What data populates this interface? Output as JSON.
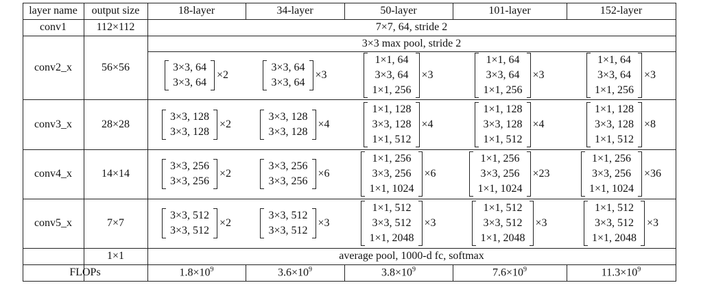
{
  "table": {
    "header": [
      "layer name",
      "output size",
      "18-layer",
      "34-layer",
      "50-layer",
      "101-layer",
      "152-layer"
    ],
    "rows": [
      {
        "layer": "conv1",
        "output": "112×112",
        "spec": "7×7, 64, stride 2"
      },
      {
        "layer": "conv2_x",
        "output": "56×56",
        "pre": "3×3 max pool, stride 2",
        "blocks": [
          {
            "lines": [
              "3×3, 64",
              "3×3, 64"
            ],
            "repeat": "×2"
          },
          {
            "lines": [
              "3×3, 64",
              "3×3, 64"
            ],
            "repeat": "×3"
          },
          {
            "lines": [
              "1×1, 64",
              "3×3, 64",
              "1×1, 256"
            ],
            "repeat": "×3"
          },
          {
            "lines": [
              "1×1, 64",
              "3×3, 64",
              "1×1, 256"
            ],
            "repeat": "×3"
          },
          {
            "lines": [
              "1×1, 64",
              "3×3, 64",
              "1×1, 256"
            ],
            "repeat": "×3"
          }
        ]
      },
      {
        "layer": "conv3_x",
        "output": "28×28",
        "blocks": [
          {
            "lines": [
              "3×3, 128",
              "3×3, 128"
            ],
            "repeat": "×2"
          },
          {
            "lines": [
              "3×3, 128",
              "3×3, 128"
            ],
            "repeat": "×4"
          },
          {
            "lines": [
              "1×1, 128",
              "3×3, 128",
              "1×1, 512"
            ],
            "repeat": "×4"
          },
          {
            "lines": [
              "1×1, 128",
              "3×3, 128",
              "1×1, 512"
            ],
            "repeat": "×4"
          },
          {
            "lines": [
              "1×1, 128",
              "3×3, 128",
              "1×1, 512"
            ],
            "repeat": "×8"
          }
        ]
      },
      {
        "layer": "conv4_x",
        "output": "14×14",
        "blocks": [
          {
            "lines": [
              "3×3, 256",
              "3×3, 256"
            ],
            "repeat": "×2"
          },
          {
            "lines": [
              "3×3, 256",
              "3×3, 256"
            ],
            "repeat": "×6"
          },
          {
            "lines": [
              "1×1, 256",
              "3×3, 256",
              "1×1, 1024"
            ],
            "repeat": "×6"
          },
          {
            "lines": [
              "1×1, 256",
              "3×3, 256",
              "1×1, 1024"
            ],
            "repeat": "×23"
          },
          {
            "lines": [
              "1×1, 256",
              "3×3, 256",
              "1×1, 1024"
            ],
            "repeat": "×36"
          }
        ]
      },
      {
        "layer": "conv5_x",
        "output": "7×7",
        "blocks": [
          {
            "lines": [
              "3×3, 512",
              "3×3, 512"
            ],
            "repeat": "×2"
          },
          {
            "lines": [
              "3×3, 512",
              "3×3, 512"
            ],
            "repeat": "×3"
          },
          {
            "lines": [
              "1×1, 512",
              "3×3, 512",
              "1×1, 2048"
            ],
            "repeat": "×3"
          },
          {
            "lines": [
              "1×1, 512",
              "3×3, 512",
              "1×1, 2048"
            ],
            "repeat": "×3"
          },
          {
            "lines": [
              "1×1, 512",
              "3×3, 512",
              "1×1, 2048"
            ],
            "repeat": "×3"
          }
        ]
      },
      {
        "output": "1×1",
        "spec": "average pool, 1000-d fc, softmax"
      },
      {
        "layer": "FLOPs",
        "flops": [
          {
            "base": "1.8×10",
            "exp": "9"
          },
          {
            "base": "3.6×10",
            "exp": "9"
          },
          {
            "base": "3.8×10",
            "exp": "9"
          },
          {
            "base": "7.6×10",
            "exp": "9"
          },
          {
            "base": "11.3×10",
            "exp": "9"
          }
        ]
      }
    ]
  }
}
